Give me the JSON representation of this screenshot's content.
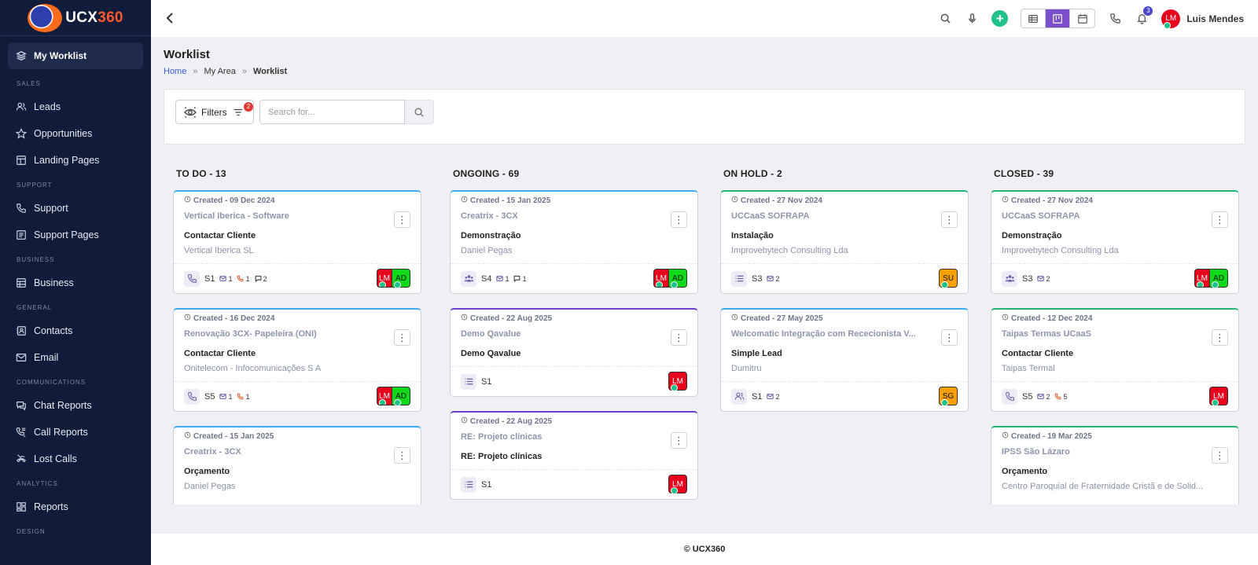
{
  "app": {
    "logo_text": "UCX",
    "logo_accent": "360"
  },
  "sidebar": {
    "active_item": "My Worklist",
    "sections": [
      {
        "label": "SALES",
        "items": [
          {
            "label": "Leads",
            "icon": "users-icon"
          },
          {
            "label": "Opportunities",
            "icon": "star-icon"
          },
          {
            "label": "Landing Pages",
            "icon": "layout-icon"
          }
        ]
      },
      {
        "label": "SUPPORT",
        "items": [
          {
            "label": "Support",
            "icon": "phone-icon"
          },
          {
            "label": "Support Pages",
            "icon": "document-icon"
          }
        ]
      },
      {
        "label": "BUSINESS",
        "items": [
          {
            "label": "Business",
            "icon": "building-icon"
          }
        ]
      },
      {
        "label": "GENERAL",
        "items": [
          {
            "label": "Contacts",
            "icon": "contacts-icon"
          },
          {
            "label": "Email",
            "icon": "mail-icon"
          }
        ]
      },
      {
        "label": "COMMUNICATIONS",
        "items": [
          {
            "label": "Chat Reports",
            "icon": "chat-icon"
          },
          {
            "label": "Call Reports",
            "icon": "call-list-icon"
          },
          {
            "label": "Lost Calls",
            "icon": "missed-call-icon"
          }
        ]
      },
      {
        "label": "ANALYTICS",
        "items": [
          {
            "label": "Reports",
            "icon": "grid-icon"
          }
        ]
      },
      {
        "label": "DESIGN",
        "items": []
      }
    ]
  },
  "topbar": {
    "notification_count": "3",
    "user_initials": "LM",
    "user_name": "Luis Mendes"
  },
  "page": {
    "title": "Worklist",
    "breadcrumb": [
      "Home",
      "My Area",
      "Worklist"
    ]
  },
  "filters": {
    "label": "Filters",
    "count": "2",
    "search_placeholder": "Search for..."
  },
  "columns": [
    {
      "title": "TO DO - 13",
      "cards": [
        {
          "color": "blue",
          "created": "Created - 09 Dec 2024",
          "subject": "Vertical Iberica - Software",
          "action": "Contactar Cliente",
          "company": "Vertical Iberica SL",
          "type": "phone",
          "stage": "S1",
          "metrics": [
            {
              "kind": "mail",
              "value": "1"
            },
            {
              "kind": "phone",
              "value": "1"
            },
            {
              "kind": "chat",
              "value": "2"
            }
          ],
          "avatars": [
            {
              "initials": "LM",
              "bg": "#e8001c",
              "fg": "#ffffff"
            },
            {
              "initials": "AD",
              "bg": "#10d81a",
              "fg": "#111111"
            }
          ]
        },
        {
          "color": "blue",
          "created": "Created - 16 Dec 2024",
          "subject": "Renovação 3CX- Papeleira (ONI)",
          "action": "Contactar Cliente",
          "company": "Onitelecom - Infocomunicações S A",
          "type": "phone",
          "stage": "S5",
          "metrics": [
            {
              "kind": "mail",
              "value": "1"
            },
            {
              "kind": "phone",
              "value": "1"
            }
          ],
          "avatars": [
            {
              "initials": "LM",
              "bg": "#e8001c",
              "fg": "#ffffff"
            },
            {
              "initials": "AD",
              "bg": "#10d81a",
              "fg": "#111111"
            }
          ]
        },
        {
          "color": "blue",
          "created": "Created - 15 Jan 2025",
          "subject": "Creatrix - 3CX",
          "action": "Orçamento",
          "company": "Daniel Pegas",
          "type": "",
          "stage": "",
          "metrics": [],
          "avatars": []
        }
      ]
    },
    {
      "title": "ONGOING - 69",
      "cards": [
        {
          "color": "blue",
          "created": "Created - 15 Jan 2025",
          "subject": "Creatrix - 3CX",
          "action": "Demonstração",
          "company": "Daniel Pegas",
          "type": "group",
          "stage": "S4",
          "metrics": [
            {
              "kind": "mail",
              "value": "1"
            },
            {
              "kind": "chat",
              "value": "1"
            }
          ],
          "avatars": [
            {
              "initials": "LM",
              "bg": "#e8001c",
              "fg": "#ffffff"
            },
            {
              "initials": "AD",
              "bg": "#10d81a",
              "fg": "#111111"
            }
          ]
        },
        {
          "color": "purple",
          "created": "Created - 22 Aug 2025",
          "subject": "Demo Qavalue",
          "action": "Demo Qavalue",
          "company": "",
          "type": "list",
          "stage": "S1",
          "metrics": [],
          "avatars": [
            {
              "initials": "LM",
              "bg": "#e8001c",
              "fg": "#ffffff"
            }
          ]
        },
        {
          "color": "purple",
          "created": "Created - 22 Aug 2025",
          "subject": "RE: Projeto clínicas",
          "action": "RE: Projeto clínicas",
          "company": "",
          "type": "list",
          "stage": "S1",
          "metrics": [],
          "avatars": [
            {
              "initials": "LM",
              "bg": "#e8001c",
              "fg": "#ffffff"
            }
          ]
        }
      ]
    },
    {
      "title": "ON HOLD - 2",
      "cards": [
        {
          "color": "green",
          "created": "Created - 27 Nov 2024",
          "subject": "UCCaaS SOFRAPA",
          "action": "Instalação",
          "company": "Improvebytech Consulting Lda",
          "type": "list",
          "stage": "S3",
          "metrics": [
            {
              "kind": "mail",
              "value": "2"
            }
          ],
          "avatars": [
            {
              "initials": "SU",
              "bg": "#f7a000",
              "fg": "#111111"
            }
          ]
        },
        {
          "color": "blue",
          "created": "Created - 27 May 2025",
          "subject": "Welcomatic Integração com Rececionista V...",
          "action": "Simple Lead",
          "company": "Dumitru",
          "type": "person",
          "stage": "S1",
          "metrics": [
            {
              "kind": "mail",
              "value": "2"
            }
          ],
          "avatars": [
            {
              "initials": "SG",
              "bg": "#f7a000",
              "fg": "#111111"
            }
          ]
        }
      ]
    },
    {
      "title": "CLOSED - 39",
      "cards": [
        {
          "color": "green",
          "created": "Created - 27 Nov 2024",
          "subject": "UCCaaS SOFRAPA",
          "action": "Demonstração",
          "company": "Improvebytech Consulting Lda",
          "type": "group",
          "stage": "S3",
          "metrics": [
            {
              "kind": "mail",
              "value": "2"
            }
          ],
          "avatars": [
            {
              "initials": "LM",
              "bg": "#e8001c",
              "fg": "#ffffff"
            },
            {
              "initials": "AD",
              "bg": "#10d81a",
              "fg": "#111111"
            }
          ]
        },
        {
          "color": "green",
          "created": "Created - 12 Dec 2024",
          "subject": "Taipas Termas UCaaS",
          "action": "Contactar Cliente",
          "company": "Taipas Termal",
          "type": "phone",
          "stage": "S5",
          "metrics": [
            {
              "kind": "mail",
              "value": "2"
            },
            {
              "kind": "phone",
              "value": "5"
            }
          ],
          "avatars": [
            {
              "initials": "LM",
              "bg": "#e8001c",
              "fg": "#ffffff"
            }
          ]
        },
        {
          "color": "green",
          "created": "Created - 19 Mar 2025",
          "subject": "IPSS São Lázaro",
          "action": "Orçamento",
          "company": "Centro Paroquial de Fraternidade Cristã e de Solid...",
          "type": "",
          "stage": "",
          "metrics": [],
          "avatars": []
        }
      ]
    }
  ],
  "footer": {
    "text": "© UCX360"
  }
}
